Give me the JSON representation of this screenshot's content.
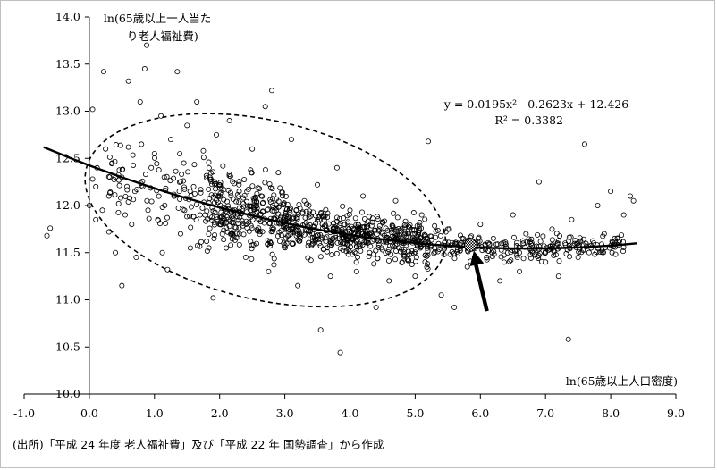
{
  "chart_data": {
    "type": "scatter",
    "ylabel": "ln(65歳以上一人当たり老人福祉費)",
    "xlabel": "ln(65歳以上人口密度)",
    "xlim": [
      -1.0,
      9.0
    ],
    "ylim": [
      10.0,
      14.0
    ],
    "x_ticks": [
      "-1.0",
      "0.0",
      "1.0",
      "2.0",
      "3.0",
      "4.0",
      "5.0",
      "6.0",
      "7.0",
      "8.0",
      "9.0"
    ],
    "y_ticks": [
      "14.0",
      "13.5",
      "13.0",
      "12.5",
      "12.0",
      "11.5",
      "11.0",
      "10.5",
      "10.0"
    ],
    "trendline": {
      "type": "polynomial",
      "coefficients": [
        0.0195,
        -0.2623,
        12.426
      ],
      "x_range": [
        -0.7,
        8.4
      ],
      "equation_label": "y = 0.0195x² - 0.2623x + 12.426",
      "r2_label": "R² = 0.3382"
    },
    "highlight_point": {
      "x": 5.85,
      "y": 11.58
    },
    "ellipse": {
      "center_x": 2.7,
      "center_y": 11.95,
      "rx": 2.82,
      "ry": 0.95,
      "angle_deg": 13
    },
    "arrow": {
      "from": {
        "x": 6.1,
        "y": 10.88
      },
      "to": {
        "x": 5.9,
        "y": 11.52
      }
    },
    "series": [
      {
        "points": [
          [
            -0.65,
            11.68
          ],
          [
            -0.6,
            11.76
          ],
          [
            0.0,
            12.0
          ],
          [
            0.05,
            13.02
          ],
          [
            0.05,
            12.28
          ],
          [
            0.1,
            12.2
          ],
          [
            0.1,
            11.85
          ],
          [
            0.12,
            12.4
          ],
          [
            0.2,
            11.95
          ],
          [
            0.22,
            13.42
          ],
          [
            0.25,
            12.6
          ],
          [
            0.3,
            12.1
          ],
          [
            0.3,
            11.72
          ],
          [
            0.35,
            12.45
          ],
          [
            0.4,
            11.5
          ],
          [
            0.45,
            12.02
          ],
          [
            0.5,
            12.3
          ],
          [
            0.5,
            11.15
          ],
          [
            0.55,
            11.9
          ],
          [
            0.6,
            13.32
          ],
          [
            0.6,
            12.62
          ],
          [
            0.65,
            11.8
          ],
          [
            0.7,
            12.15
          ],
          [
            0.72,
            11.45
          ],
          [
            0.78,
            13.1
          ],
          [
            0.8,
            12.65
          ],
          [
            0.82,
            12.2
          ],
          [
            0.85,
            13.45
          ],
          [
            0.88,
            13.7
          ],
          [
            0.9,
            11.95
          ],
          [
            0.95,
            12.4
          ],
          [
            1.0,
            12.55
          ],
          [
            1.05,
            11.85
          ],
          [
            1.1,
            12.95
          ],
          [
            1.12,
            11.5
          ],
          [
            1.15,
            12.3
          ],
          [
            1.2,
            11.32
          ],
          [
            1.25,
            12.7
          ],
          [
            1.3,
            12.1
          ],
          [
            1.35,
            13.42
          ],
          [
            1.4,
            11.7
          ],
          [
            1.45,
            12.45
          ],
          [
            1.5,
            12.85
          ],
          [
            1.55,
            11.55
          ],
          [
            1.6,
            12.2
          ],
          [
            1.65,
            13.1
          ],
          [
            1.7,
            11.9
          ],
          [
            1.75,
            12.58
          ],
          [
            1.8,
            11.62
          ],
          [
            1.85,
            12.3
          ],
          [
            1.9,
            11.02
          ],
          [
            1.95,
            12.75
          ],
          [
            2.0,
            11.8
          ],
          [
            2.05,
            12.42
          ],
          [
            2.1,
            11.55
          ],
          [
            2.15,
            12.9
          ],
          [
            2.2,
            11.7
          ],
          [
            2.3,
            12.15
          ],
          [
            2.4,
            11.45
          ],
          [
            2.5,
            12.6
          ],
          [
            2.6,
            11.85
          ],
          [
            2.7,
            13.05
          ],
          [
            2.75,
            11.3
          ],
          [
            2.8,
            13.22
          ],
          [
            2.9,
            12.35
          ],
          [
            3.0,
            11.58
          ],
          [
            3.1,
            12.7
          ],
          [
            3.2,
            11.15
          ],
          [
            3.3,
            12.05
          ],
          [
            3.4,
            11.42
          ],
          [
            3.5,
            12.22
          ],
          [
            3.55,
            10.68
          ],
          [
            3.6,
            11.88
          ],
          [
            3.7,
            11.25
          ],
          [
            3.8,
            12.4
          ],
          [
            3.85,
            10.44
          ],
          [
            3.9,
            11.6
          ],
          [
            4.0,
            11.95
          ],
          [
            4.1,
            11.3
          ],
          [
            4.2,
            12.1
          ],
          [
            4.3,
            11.5
          ],
          [
            4.4,
            10.92
          ],
          [
            4.5,
            11.82
          ],
          [
            4.6,
            11.2
          ],
          [
            4.7,
            12.05
          ],
          [
            4.8,
            11.4
          ],
          [
            4.9,
            11.7
          ],
          [
            5.0,
            11.25
          ],
          [
            5.1,
            11.9
          ],
          [
            5.2,
            12.68
          ],
          [
            5.3,
            11.55
          ],
          [
            5.4,
            11.05
          ],
          [
            5.5,
            11.75
          ],
          [
            5.6,
            10.92
          ],
          [
            5.7,
            11.6
          ],
          [
            5.8,
            11.35
          ],
          [
            6.0,
            11.8
          ],
          [
            6.1,
            11.45
          ],
          [
            6.2,
            11.65
          ],
          [
            6.3,
            11.2
          ],
          [
            6.4,
            11.55
          ],
          [
            6.5,
            11.9
          ],
          [
            6.6,
            11.3
          ],
          [
            6.7,
            11.7
          ],
          [
            6.8,
            11.5
          ],
          [
            6.9,
            12.25
          ],
          [
            7.0,
            11.4
          ],
          [
            7.1,
            11.75
          ],
          [
            7.2,
            11.25
          ],
          [
            7.3,
            11.6
          ],
          [
            7.35,
            10.58
          ],
          [
            7.4,
            11.85
          ],
          [
            7.5,
            11.45
          ],
          [
            7.6,
            12.65
          ],
          [
            7.7,
            11.55
          ],
          [
            7.8,
            12.0
          ],
          [
            7.9,
            11.7
          ],
          [
            8.0,
            12.15
          ],
          [
            8.1,
            11.65
          ],
          [
            8.2,
            11.9
          ],
          [
            8.3,
            12.1
          ],
          [
            8.35,
            12.05
          ]
        ]
      }
    ]
  },
  "source_note": "(出所)「平成 24 年度 老人福祉費」及び「平成 22 年 国勢調査」から作成"
}
